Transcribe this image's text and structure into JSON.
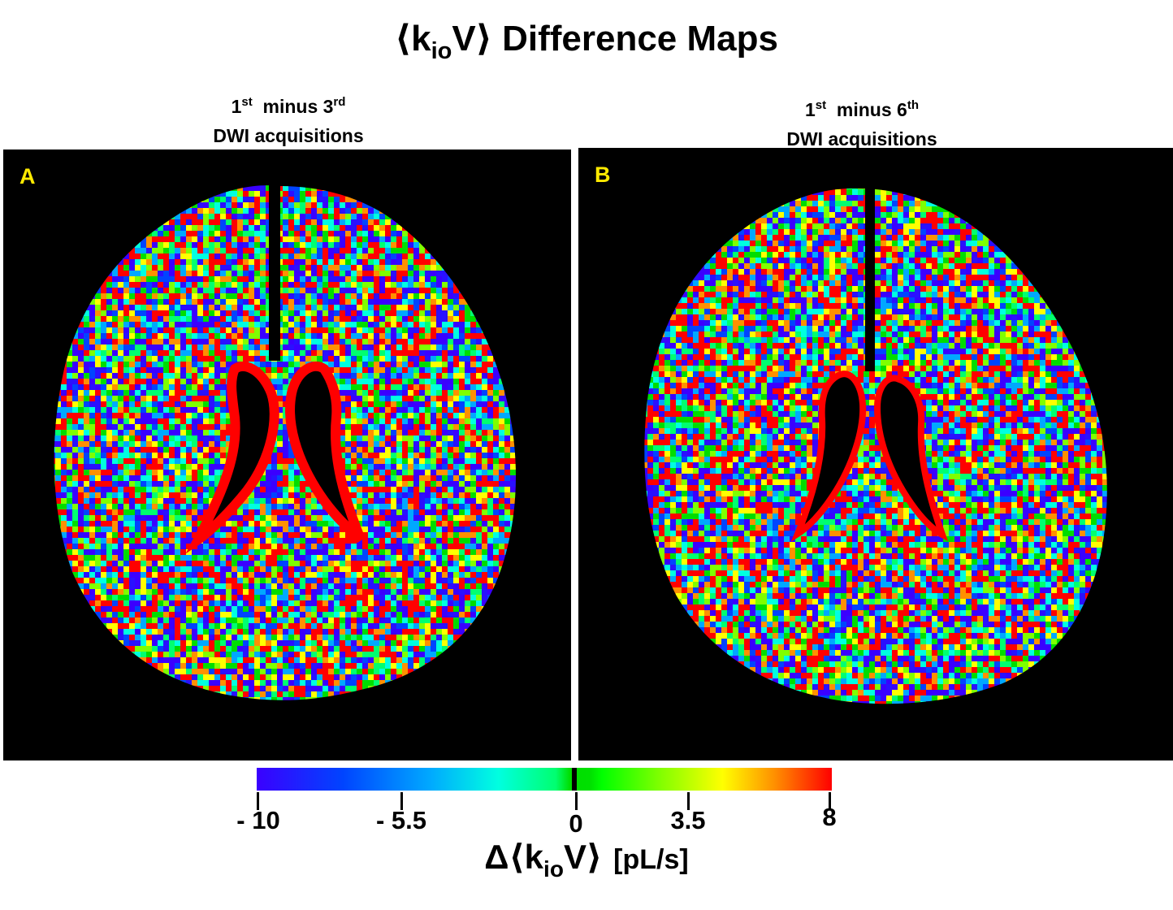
{
  "title": {
    "prefix": "⟨k",
    "sub": "io",
    "suffix": "V⟩ Difference Maps"
  },
  "panels": [
    {
      "label": "A",
      "caption_line1": {
        "a": "1",
        "a_sup": "st",
        "mid": "  minus 3",
        "b_sup": "rd"
      },
      "caption_line2": "DWI acquisitions"
    },
    {
      "label": "B",
      "caption_line1": {
        "a": "1",
        "a_sup": "st",
        "mid": "  minus 6",
        "b_sup": "th"
      },
      "caption_line2": "DWI acquisitions"
    }
  ],
  "colorbar": {
    "min": -10,
    "max": 8,
    "ticks": [
      {
        "value": -10,
        "label": "- 10"
      },
      {
        "value": -5.5,
        "label": "- 5.5"
      },
      {
        "value": 0,
        "label": "0"
      },
      {
        "value": 3.5,
        "label": "3.5"
      },
      {
        "value": 8,
        "label": "8"
      }
    ],
    "label": {
      "prefix": "Δ⟨k",
      "sub": "io",
      "suffix": "V⟩",
      "unit": "[pL/s]"
    },
    "colors": {
      "low": "#3a00ff",
      "zero": "#00dd00",
      "high": "#ff0000"
    }
  },
  "label_color": "#ffea00"
}
